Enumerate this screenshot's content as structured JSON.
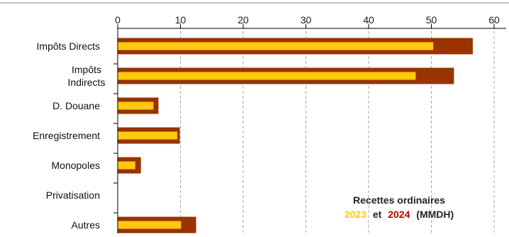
{
  "colors": {
    "series_2023": "#FFC90E",
    "series_2024": "#993300",
    "axis": "#000000",
    "grid": "#A6A6A6",
    "top_border": "#BFBFBF"
  },
  "annotation": {
    "line1": "Recettes ordinaires",
    "year_a": "2023",
    "connector": "et",
    "year_b": "2024",
    "unit": "(MMDH)"
  },
  "chart_data": {
    "type": "bar",
    "orientation": "horizontal",
    "title": "",
    "xlabel": "",
    "ylabel": "",
    "xlim": [
      0,
      60
    ],
    "xticks": [
      0,
      10,
      20,
      30,
      40,
      50,
      60
    ],
    "grid": "vertical dashed",
    "categories": [
      [
        "Impôts Directs"
      ],
      [
        "Impôts",
        "Indirects"
      ],
      [
        "D. Douane"
      ],
      [
        "Enregistrement"
      ],
      [
        "Monopoles"
      ],
      [
        "Privatisation"
      ],
      [
        "Autres"
      ]
    ],
    "series": [
      {
        "name": "2023",
        "values": [
          50.3,
          47.5,
          5.7,
          9.5,
          2.8,
          0,
          10.1
        ]
      },
      {
        "name": "2024",
        "values": [
          56.6,
          53.6,
          6.5,
          9.9,
          3.7,
          0,
          12.5
        ]
      }
    ]
  }
}
